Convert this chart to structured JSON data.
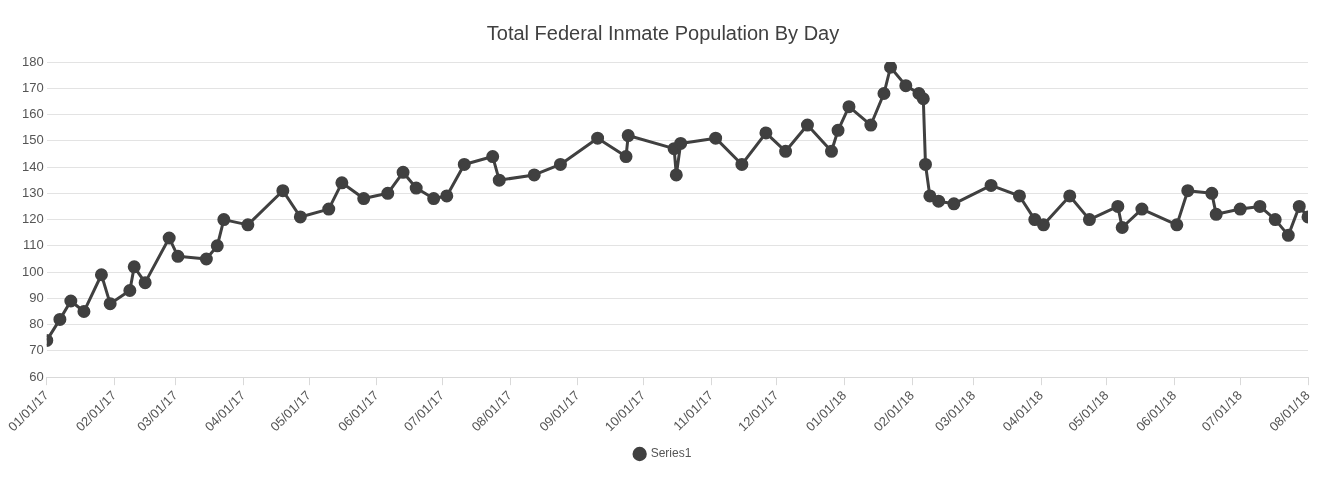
{
  "chart_data": {
    "type": "line",
    "title": "Total Federal Inmate Population By Day",
    "x": [
      "2017-01-01",
      "2017-01-07",
      "2017-01-12",
      "2017-01-18",
      "2017-01-26",
      "2017-01-30",
      "2017-02-08",
      "2017-02-10",
      "2017-02-15",
      "2017-02-26",
      "2017-03-02",
      "2017-03-15",
      "2017-03-20",
      "2017-03-23",
      "2017-04-03",
      "2017-04-19",
      "2017-04-27",
      "2017-05-10",
      "2017-05-16",
      "2017-05-26",
      "2017-06-06",
      "2017-06-13",
      "2017-06-19",
      "2017-06-27",
      "2017-07-03",
      "2017-07-11",
      "2017-07-24",
      "2017-07-27",
      "2017-08-12",
      "2017-08-24",
      "2017-09-10",
      "2017-09-23",
      "2017-09-24",
      "2017-10-15",
      "2017-10-16",
      "2017-10-18",
      "2017-11-03",
      "2017-11-15",
      "2017-11-26",
      "2017-12-05",
      "2017-12-15",
      "2017-12-26",
      "2017-12-29",
      "2018-01-03",
      "2018-01-13",
      "2018-01-19",
      "2018-01-22",
      "2018-01-29",
      "2018-02-04",
      "2018-02-06",
      "2018-02-07",
      "2018-02-09",
      "2018-02-13",
      "2018-02-20",
      "2018-03-09",
      "2018-03-22",
      "2018-03-29",
      "2018-04-02",
      "2018-04-14",
      "2018-04-23",
      "2018-05-06",
      "2018-05-08",
      "2018-05-17",
      "2018-06-02",
      "2018-06-07",
      "2018-06-18",
      "2018-06-20",
      "2018-07-01",
      "2018-07-10",
      "2018-07-17",
      "2018-07-23",
      "2018-07-28",
      "2018-08-01"
    ],
    "series": [
      {
        "name": "Series1",
        "color": "#404040",
        "values": [
          74,
          82,
          89,
          85,
          99,
          88,
          93,
          102,
          96,
          113,
          106,
          105,
          110,
          120,
          118,
          131,
          121,
          124,
          134,
          128,
          130,
          138,
          132,
          128,
          129,
          141,
          144,
          135,
          137,
          141,
          151,
          144,
          152,
          147,
          137,
          149,
          151,
          141,
          153,
          146,
          156,
          146,
          154,
          163,
          156,
          168,
          178,
          171,
          168,
          166,
          141,
          129,
          127,
          126,
          133,
          129,
          120,
          118,
          129,
          120,
          125,
          117,
          124,
          118,
          131,
          130,
          122,
          124,
          125,
          120,
          114,
          125,
          121
        ]
      }
    ],
    "xlim": [
      "2017-01-01",
      "2018-08-01"
    ],
    "xticks": [
      {
        "value": "2017-01-01",
        "label": "01/01/17"
      },
      {
        "value": "2017-02-01",
        "label": "02/01/17"
      },
      {
        "value": "2017-03-01",
        "label": "03/01/17"
      },
      {
        "value": "2017-04-01",
        "label": "04/01/17"
      },
      {
        "value": "2017-05-01",
        "label": "05/01/17"
      },
      {
        "value": "2017-06-01",
        "label": "06/01/17"
      },
      {
        "value": "2017-07-01",
        "label": "07/01/17"
      },
      {
        "value": "2017-08-01",
        "label": "08/01/17"
      },
      {
        "value": "2017-09-01",
        "label": "09/01/17"
      },
      {
        "value": "2017-10-01",
        "label": "10/01/17"
      },
      {
        "value": "2017-11-01",
        "label": "11/01/17"
      },
      {
        "value": "2017-12-01",
        "label": "12/01/17"
      },
      {
        "value": "2018-01-01",
        "label": "01/01/18"
      },
      {
        "value": "2018-02-01",
        "label": "02/01/18"
      },
      {
        "value": "2018-03-01",
        "label": "03/01/18"
      },
      {
        "value": "2018-04-01",
        "label": "04/01/18"
      },
      {
        "value": "2018-05-01",
        "label": "05/01/18"
      },
      {
        "value": "2018-06-01",
        "label": "06/01/18"
      },
      {
        "value": "2018-07-01",
        "label": "07/01/18"
      },
      {
        "value": "2018-08-01",
        "label": "08/01/18"
      }
    ],
    "ylim": [
      60,
      180
    ],
    "yticks": [
      60,
      70,
      80,
      90,
      100,
      110,
      120,
      130,
      140,
      150,
      160,
      170,
      180
    ],
    "grid": "y",
    "legend": "bottom",
    "marker": "circle",
    "line_style": "solid"
  }
}
